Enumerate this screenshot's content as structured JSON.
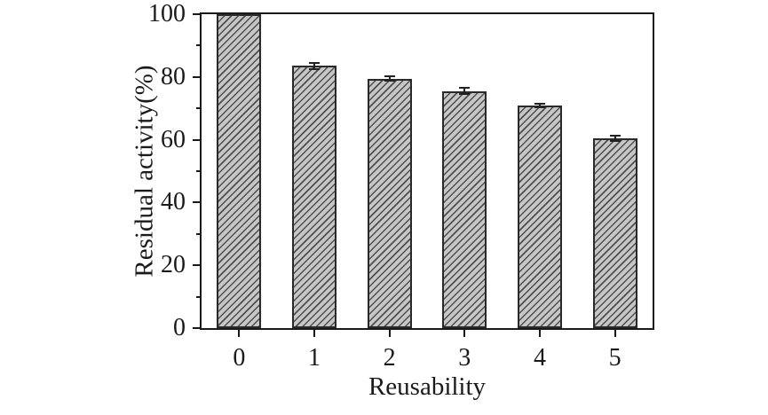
{
  "figure": {
    "background": "#ffffff",
    "axis_color": "#1a1a1a"
  },
  "chart_data": {
    "type": "bar",
    "title": "",
    "xlabel": "Reusability",
    "ylabel": "Residual activity(%)",
    "categories": [
      "0",
      "1",
      "2",
      "3",
      "4",
      "5"
    ],
    "values": [
      100,
      83.5,
      79.5,
      75.5,
      71,
      60.5
    ],
    "errors": [
      0,
      1.3,
      1.0,
      1.3,
      0.8,
      1.2
    ],
    "ylim": [
      0,
      100
    ],
    "yticks": [
      0,
      20,
      40,
      60,
      80,
      100
    ],
    "yminorticks": [
      10,
      30,
      50,
      70,
      90
    ],
    "grid": false,
    "legend": null,
    "bar_fill": "#c6c6c6",
    "bar_hatch_color": "#4e4e4e",
    "bar_hatch": "diagonal-forward",
    "bar_border": "#2a2a2a",
    "error_bar_color": "#222222"
  }
}
